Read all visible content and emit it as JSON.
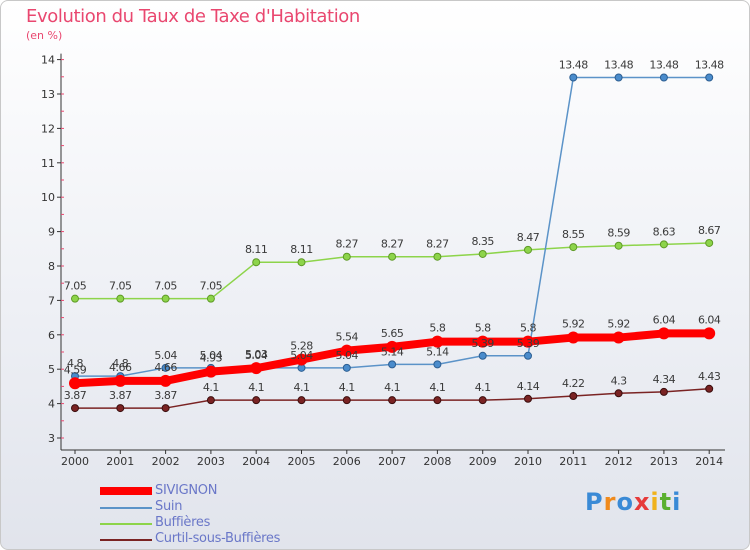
{
  "chart_data": {
    "type": "line",
    "title": "Evolution du Taux de Taxe d'Habitation",
    "subtitle": "(en %)",
    "x": [
      2000,
      2001,
      2002,
      2003,
      2004,
      2005,
      2006,
      2007,
      2008,
      2009,
      2010,
      2011,
      2012,
      2013,
      2014
    ],
    "ylim": [
      3,
      14
    ],
    "yticks": [
      3,
      4,
      5,
      6,
      7,
      8,
      9,
      10,
      11,
      12,
      13,
      14
    ],
    "grid": false,
    "legend_position": "bottom-left",
    "series": [
      {
        "name": "SIVIGNON",
        "color": "#ff0000",
        "values": [
          4.59,
          4.66,
          4.66,
          4.93,
          5.03,
          5.28,
          5.54,
          5.65,
          5.8,
          5.8,
          5.8,
          5.92,
          5.92,
          6.04,
          6.04
        ],
        "labels": [
          "4.59",
          "4.66",
          "4.66",
          "4.93",
          "5.03",
          "5.28",
          "5.54",
          "5.65",
          "5.8",
          "5.8",
          "5.8",
          "5.92",
          "5.92",
          "6.04",
          "6.04"
        ]
      },
      {
        "name": "Suin",
        "color": "#5b93c8",
        "values": [
          4.8,
          4.8,
          5.04,
          5.04,
          5.04,
          5.04,
          5.04,
          5.14,
          5.14,
          5.39,
          5.39,
          13.48,
          13.48,
          13.48,
          13.48
        ],
        "labels": [
          "4.8",
          "4.8",
          "5.04",
          "5.04",
          "5.04",
          "5.04",
          "5.04",
          "5.14",
          "5.14",
          "5.39",
          "5.39",
          "13.48",
          "13.48",
          "13.48",
          "13.48"
        ]
      },
      {
        "name": "Buffières",
        "color": "#8dd44a",
        "values": [
          7.05,
          7.05,
          7.05,
          7.05,
          8.11,
          8.11,
          8.27,
          8.27,
          8.27,
          8.35,
          8.47,
          8.55,
          8.59,
          8.63,
          8.67
        ],
        "labels": [
          "7.05",
          "7.05",
          "7.05",
          "7.05",
          "8.11",
          "8.11",
          "8.27",
          "8.27",
          "8.27",
          "8.35",
          "8.47",
          "8.55",
          "8.59",
          "8.63",
          "8.67"
        ]
      },
      {
        "name": "Curtil-sous-Buffières",
        "color": "#7a2323",
        "values": [
          3.87,
          3.87,
          3.87,
          4.1,
          4.1,
          4.1,
          4.1,
          4.1,
          4.1,
          4.1,
          4.14,
          4.22,
          4.3,
          4.34,
          4.43
        ],
        "labels": [
          "3.87",
          "3.87",
          "3.87",
          "4.1",
          "4.1",
          "4.1",
          "4.1",
          "4.1",
          "4.1",
          "4.1",
          "4.14",
          "4.22",
          "4.3",
          "4.34",
          "4.43"
        ]
      }
    ]
  },
  "logo": {
    "letters": [
      "P",
      "r",
      "o",
      "x",
      "i",
      "t",
      "i"
    ]
  }
}
